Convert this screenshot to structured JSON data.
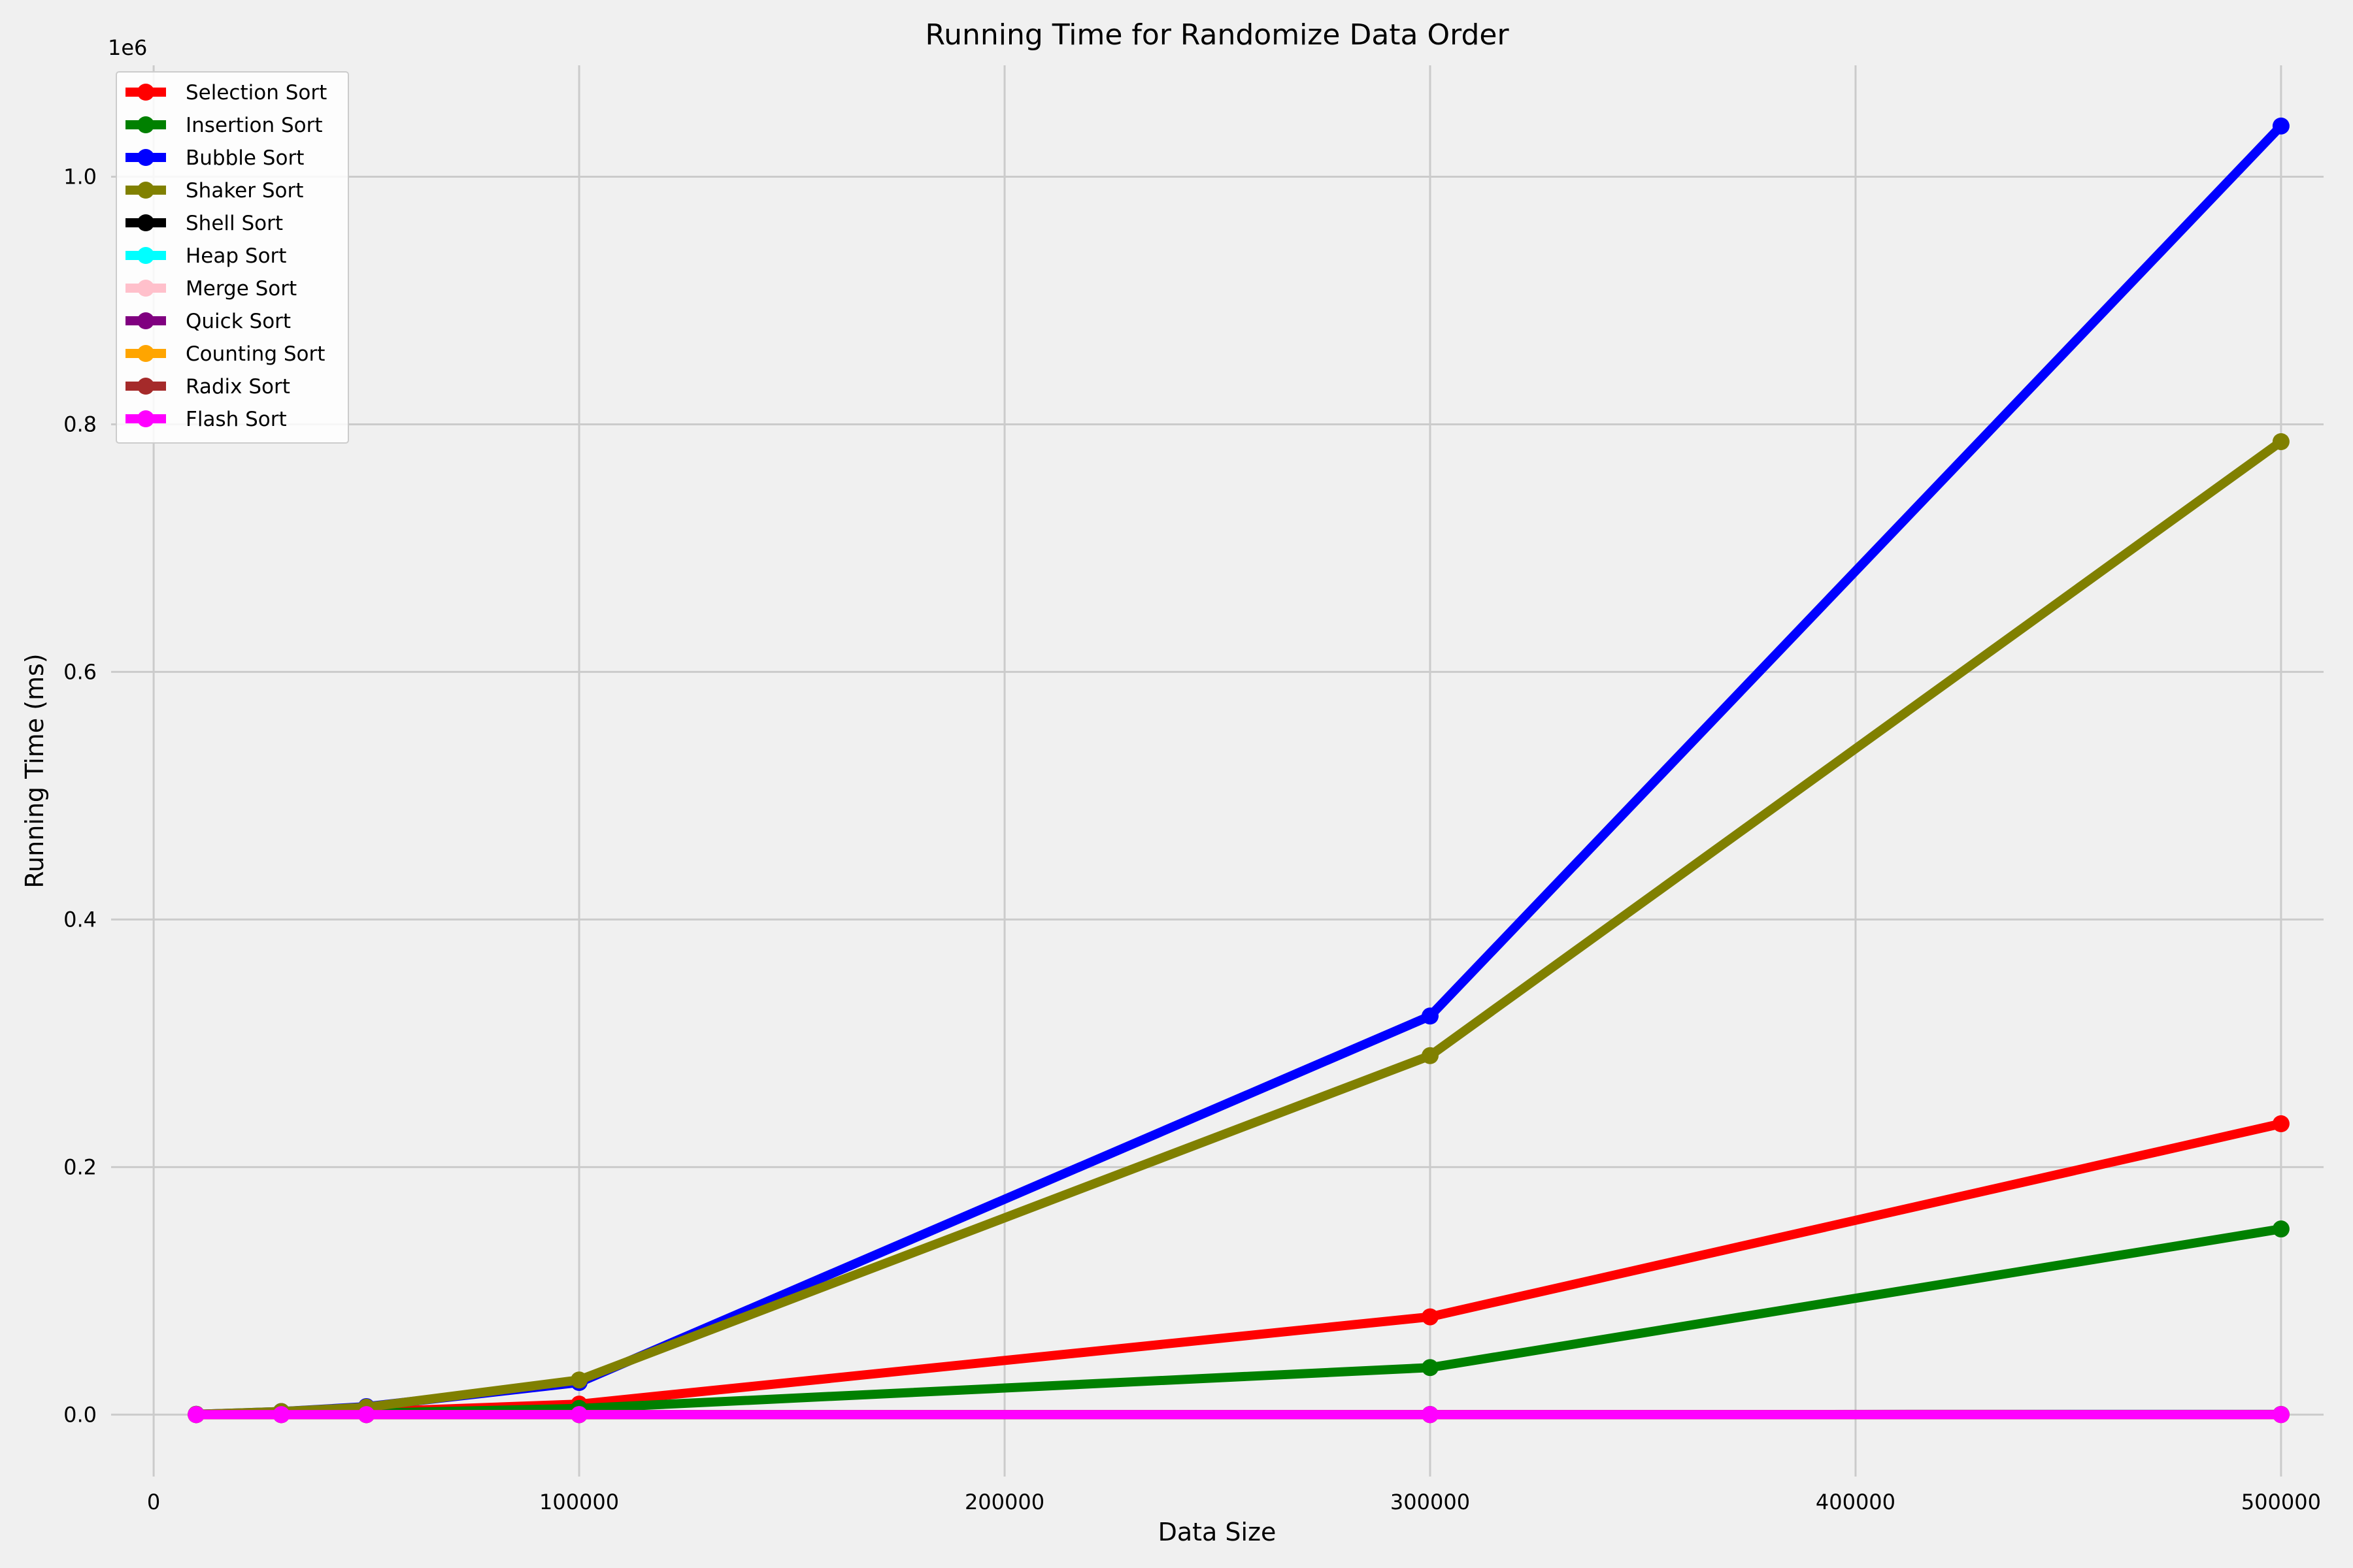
{
  "chart_data": {
    "type": "line",
    "title": "Running Time for Randomize Data Order",
    "xlabel": "Data Size",
    "ylabel": "Running Time (ms)",
    "y_scale_label": "1e6",
    "xlim": [
      -10000,
      510000
    ],
    "ylim": [
      -50000,
      1090000
    ],
    "x_ticks": [
      0,
      100000,
      200000,
      300000,
      400000,
      500000
    ],
    "x_tick_labels": [
      "0",
      "100000",
      "200000",
      "300000",
      "400000",
      "500000"
    ],
    "y_ticks": [
      0,
      200000,
      400000,
      600000,
      800000,
      1000000
    ],
    "y_tick_labels": [
      "0.0",
      "0.2",
      "0.4",
      "0.6",
      "0.8",
      "1.0"
    ],
    "grid": true,
    "legend_position": "top-left",
    "x": [
      10000,
      30000,
      50000,
      100000,
      300000,
      500000
    ],
    "series": [
      {
        "name": "Selection Sort",
        "color": "#ff0000",
        "values": [
          100,
          800,
          2300,
          8500,
          79000,
          235000
        ]
      },
      {
        "name": "Insertion Sort",
        "color": "#008000",
        "values": [
          50,
          400,
          1200,
          5000,
          38000,
          150000
        ]
      },
      {
        "name": "Bubble Sort",
        "color": "#0000ff",
        "values": [
          300,
          2500,
          6500,
          26000,
          322000,
          1041000
        ]
      },
      {
        "name": "Shaker Sort",
        "color": "#808000",
        "values": [
          300,
          2500,
          6000,
          28000,
          290000,
          786000
        ]
      },
      {
        "name": "Shell Sort",
        "color": "#000000",
        "values": [
          2,
          6,
          12,
          30,
          120,
          220
        ]
      },
      {
        "name": "Heap Sort",
        "color": "#00ffff",
        "values": [
          3,
          9,
          16,
          35,
          110,
          200
        ]
      },
      {
        "name": "Merge Sort",
        "color": "#ffc0cb",
        "values": [
          3,
          8,
          14,
          30,
          100,
          180
        ]
      },
      {
        "name": "Quick Sort",
        "color": "#800080",
        "values": [
          1,
          3,
          6,
          12,
          40,
          70
        ]
      },
      {
        "name": "Counting Sort",
        "color": "#ffa500",
        "values": [
          0,
          1,
          1,
          2,
          5,
          8
        ]
      },
      {
        "name": "Radix Sort",
        "color": "#a52a2a",
        "values": [
          1,
          2,
          4,
          8,
          25,
          40
        ]
      },
      {
        "name": "Flash Sort",
        "color": "#ff00ff",
        "values": [
          0,
          1,
          2,
          3,
          10,
          15
        ]
      }
    ]
  }
}
